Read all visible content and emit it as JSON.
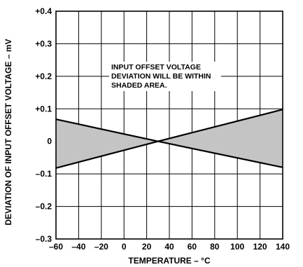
{
  "chart_data": {
    "type": "area",
    "title": "",
    "xlabel": "TEMPERATURE – °C",
    "ylabel": "DEVIATION OF INPUT OFFSET VOLTAGE – mV",
    "xlim": [
      -60,
      140
    ],
    "ylim": [
      -0.3,
      0.4
    ],
    "x_ticks": [
      -60,
      -40,
      -20,
      0,
      20,
      40,
      60,
      80,
      100,
      120,
      140
    ],
    "x_tick_labels": [
      "–60",
      "–40",
      "–20",
      "0",
      "20",
      "40",
      "60",
      "80",
      "100",
      "120",
      "140"
    ],
    "y_ticks": [
      0.4,
      0.3,
      0.2,
      0.1,
      0,
      -0.1,
      -0.2,
      -0.3
    ],
    "y_tick_labels": [
      "+0.4",
      "+0.3",
      "+0.2",
      "+0.1",
      "0",
      "–0.1",
      "–0.2",
      "–0.3"
    ],
    "grid": true,
    "series": [
      {
        "x": [
          -60,
          30,
          140
        ],
        "y": [
          0.068,
          0,
          -0.08
        ]
      },
      {
        "x": [
          -60,
          30,
          140
        ],
        "y": [
          -0.082,
          0,
          0.098
        ]
      }
    ],
    "annotations": [
      "INPUT OFFSET VOLTAGE",
      "DEVIATION WILL BE WITHIN",
      "SHADED AREA."
    ],
    "colors": {
      "shade": "#c4c4c4",
      "line": "#000000",
      "grid": "#000000"
    }
  }
}
